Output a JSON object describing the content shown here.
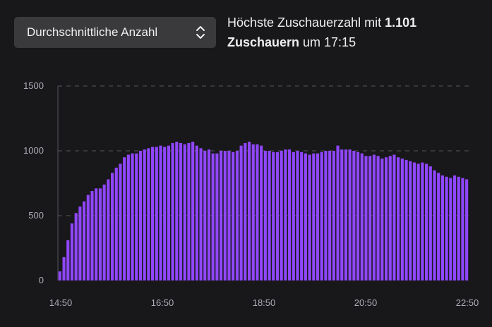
{
  "dropdown": {
    "label": "Durchschnittliche Anzahl"
  },
  "peak": {
    "prefix": "Höchste Zuschauerzahl mit ",
    "value": "1.101",
    "unit": "Zuschauern",
    "suffix": " um 17:15"
  },
  "colors": {
    "bar": "#9147ff",
    "background": "#18181b",
    "grid": "#53535f"
  },
  "chart_data": {
    "type": "bar",
    "ylim": [
      0,
      1500
    ],
    "yticks": [
      0,
      500,
      1000,
      1500
    ],
    "xtick_labels": [
      "14:50",
      "16:50",
      "18:50",
      "20:50",
      "22:50"
    ],
    "grid": true,
    "values": [
      70,
      180,
      310,
      440,
      520,
      570,
      610,
      660,
      690,
      710,
      710,
      740,
      780,
      830,
      870,
      900,
      950,
      970,
      980,
      980,
      1000,
      1010,
      1020,
      1030,
      1030,
      1040,
      1030,
      1040,
      1060,
      1070,
      1060,
      1050,
      1060,
      1070,
      1040,
      1020,
      1000,
      1010,
      980,
      980,
      1000,
      1000,
      1000,
      990,
      1000,
      1040,
      1060,
      1070,
      1050,
      1050,
      1040,
      1000,
      1000,
      990,
      990,
      1000,
      1010,
      1010,
      990,
      1000,
      990,
      980,
      970,
      980,
      980,
      990,
      1000,
      1000,
      1000,
      1040,
      1010,
      1010,
      1010,
      1000,
      990,
      980,
      960,
      960,
      970,
      960,
      940,
      950,
      960,
      970,
      950,
      940,
      930,
      920,
      910,
      900,
      910,
      900,
      880,
      850,
      830,
      810,
      800,
      790,
      810,
      800,
      790,
      780
    ]
  }
}
